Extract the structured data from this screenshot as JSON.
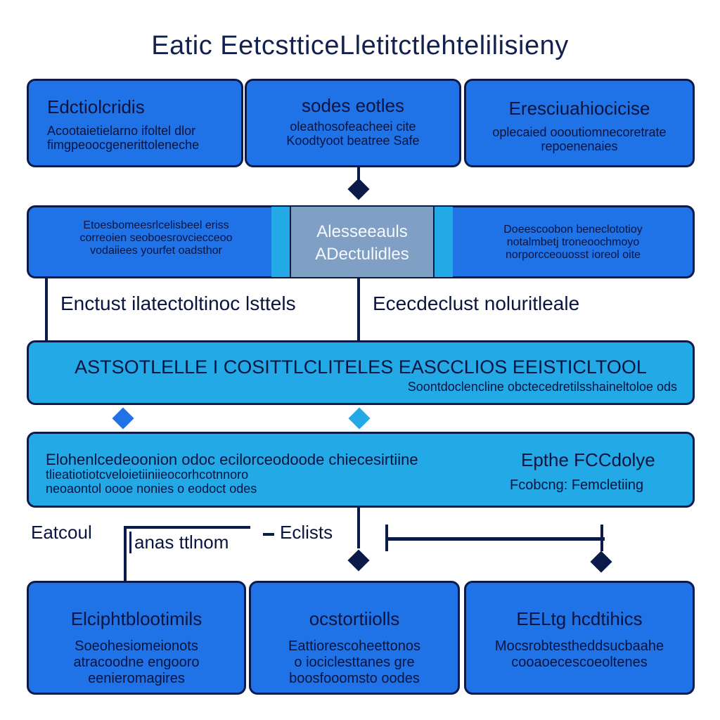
{
  "title": "Eatic EetcstticeLletitctlehtelilisieny",
  "row1": [
    {
      "heading": "Edctiolcridis",
      "lines": [
        "Acootaietielarno ifoltel dlor",
        "fimgpeoocgenerittoleneche"
      ]
    },
    {
      "heading": "sodes eotles",
      "lines": [
        "oleathosofeacheei cite",
        "Koodtyoot beatree Safe"
      ]
    },
    {
      "heading": "Eresciuahiocicise",
      "lines": [
        "oplecaied oooutiomnecoretrate",
        "repoenenaies"
      ]
    }
  ],
  "row2": {
    "left": {
      "lines": [
        "Etoesbomeesrlcelisbeel eriss",
        "correoien seoboesrovciecceoo",
        "vodaiiees yourfet oadsthor"
      ]
    },
    "middle": {
      "lines": [
        "Alesseeauls",
        "ADectulidles"
      ]
    },
    "right": {
      "lines": [
        "Doeescoobon beneclototioy",
        "notalmbetj troneoochmoyo",
        "norporcceouosst ioreol oite"
      ]
    }
  },
  "mid_labels": [
    "Enctust ilatectoltinoc lsttels",
    "Ececdeclust noluritleale"
  ],
  "band": {
    "heading": "ASTSOTLELLE I COSITTLCLITELES EASCCLIOS  EEISTICLTOOL",
    "sub": "Soontdoclencline obctecedretilsshaineltoloe ods"
  },
  "box4": {
    "lines": [
      "Elohenlcedeoonion odoc ecilorceodoode chiecesirtiine",
      "tlieatiotiotcveloietiiniieocorhcotnnoro",
      "neoaontol oooe nonies o eodoct odes"
    ],
    "right_heading": "Epthe FCCdolye",
    "right_sub": "Fcobcng: Femcletiing"
  },
  "connector_labels": [
    "Eatcoul",
    "anas ttlnom",
    "Eclists"
  ],
  "row5": [
    {
      "heading": "Elciphtblootimils",
      "lines": [
        "Soeohesiomeionots",
        "atracoodne engooro",
        "eenieromagires"
      ]
    },
    {
      "heading": "ocstortiiolls",
      "lines": [
        "Eattiorescoheettonos",
        "o iociclesttanes gre",
        "boosfooomsto oodes"
      ]
    },
    {
      "heading": "EELtg hcdtihics",
      "lines": [
        "Mocsrobtestheddsucbaahe",
        "cooaoecescoeoltenes"
      ]
    }
  ],
  "colors": {
    "blue": "#1f73e6",
    "cyan": "#23a9e6",
    "navy": "#0c1a4a",
    "grey": "#7f9fc4"
  }
}
